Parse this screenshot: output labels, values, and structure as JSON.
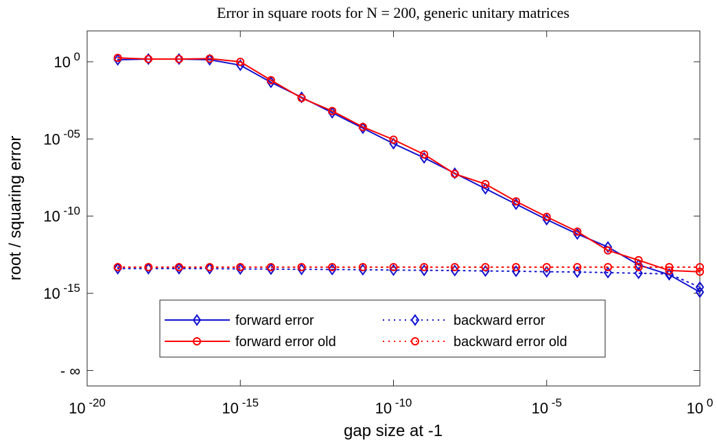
{
  "chart_data": {
    "type": "line",
    "title": "Error in square roots for N = 200, generic unitary matrices",
    "x_label": "gap size at -1",
    "y_label": "root / squaring error",
    "xscale": "log",
    "yscale": "log",
    "x": [
      1e-19,
      1e-18,
      1e-17,
      1e-16,
      1e-15,
      1e-14,
      1e-13,
      1e-12,
      1e-11,
      1e-10,
      1e-09,
      1e-08,
      1e-07,
      1e-06,
      1e-05,
      0.0001,
      0.001,
      0.01,
      0.1,
      1
    ],
    "xlim": [
      1e-20,
      1
    ],
    "ylim": [
      1e-21,
      100
    ],
    "xticks": [
      {
        "value": 1e-20,
        "label": "10^-20"
      },
      {
        "value": 1e-15,
        "label": "10^-15"
      },
      {
        "value": 1e-10,
        "label": "10^-10"
      },
      {
        "value": 1e-05,
        "label": "10^-5"
      },
      {
        "value": 1,
        "label": "10^0"
      }
    ],
    "yticks": [
      {
        "value": 1e-20,
        "label": "- ∞"
      },
      {
        "value": 1e-15,
        "label": "10^-15"
      },
      {
        "value": 1e-10,
        "label": "10^-10"
      },
      {
        "value": 1e-05,
        "label": "10^-05"
      },
      {
        "value": 1,
        "label": "10^0"
      }
    ],
    "legend": "lower center",
    "series": [
      {
        "name": "forward error",
        "color": "#1010d0",
        "style": "solid",
        "marker": "diamond",
        "values": [
          1.35,
          1.5,
          1.5,
          1.35,
          0.6,
          0.047,
          0.005,
          0.0005,
          5e-05,
          5e-06,
          6e-07,
          6e-08,
          6e-09,
          6e-10,
          6e-11,
          7e-12,
          1e-12,
          7e-14,
          1.6e-14,
          1.2e-15
        ]
      },
      {
        "name": "backward error",
        "color": "#1010d0",
        "style": "dotted",
        "marker": "diamond",
        "values": [
          4e-14,
          4e-14,
          4e-14,
          4e-14,
          3.8e-14,
          3.7e-14,
          3.6e-14,
          3.5e-14,
          3.4e-14,
          3.2e-14,
          3.1e-14,
          3e-14,
          2.8e-14,
          2.7e-14,
          2.5e-14,
          2.4e-14,
          2.2e-14,
          2e-14,
          1.8e-14,
          2.5e-15
        ]
      },
      {
        "name": "forward error old",
        "color": "#ff0000",
        "style": "solid",
        "marker": "circle",
        "values": [
          1.8,
          1.5,
          1.5,
          1.6,
          1.0,
          0.064,
          0.0045,
          0.00065,
          6e-05,
          9e-06,
          1e-06,
          5.5e-08,
          1.2e-08,
          9e-10,
          9e-11,
          1e-11,
          6e-13,
          1.4e-13,
          3e-14,
          2.5e-14
        ]
      },
      {
        "name": "backward error old",
        "color": "#ff0000",
        "style": "dotted",
        "marker": "circle",
        "values": [
          5e-14,
          5e-14,
          5e-14,
          5e-14,
          5e-14,
          5e-14,
          5e-14,
          5e-14,
          5e-14,
          5e-14,
          5e-14,
          5e-14,
          5e-14,
          5e-14,
          5e-14,
          5e-14,
          5e-14,
          5e-14,
          5e-14,
          5e-14
        ]
      }
    ]
  }
}
